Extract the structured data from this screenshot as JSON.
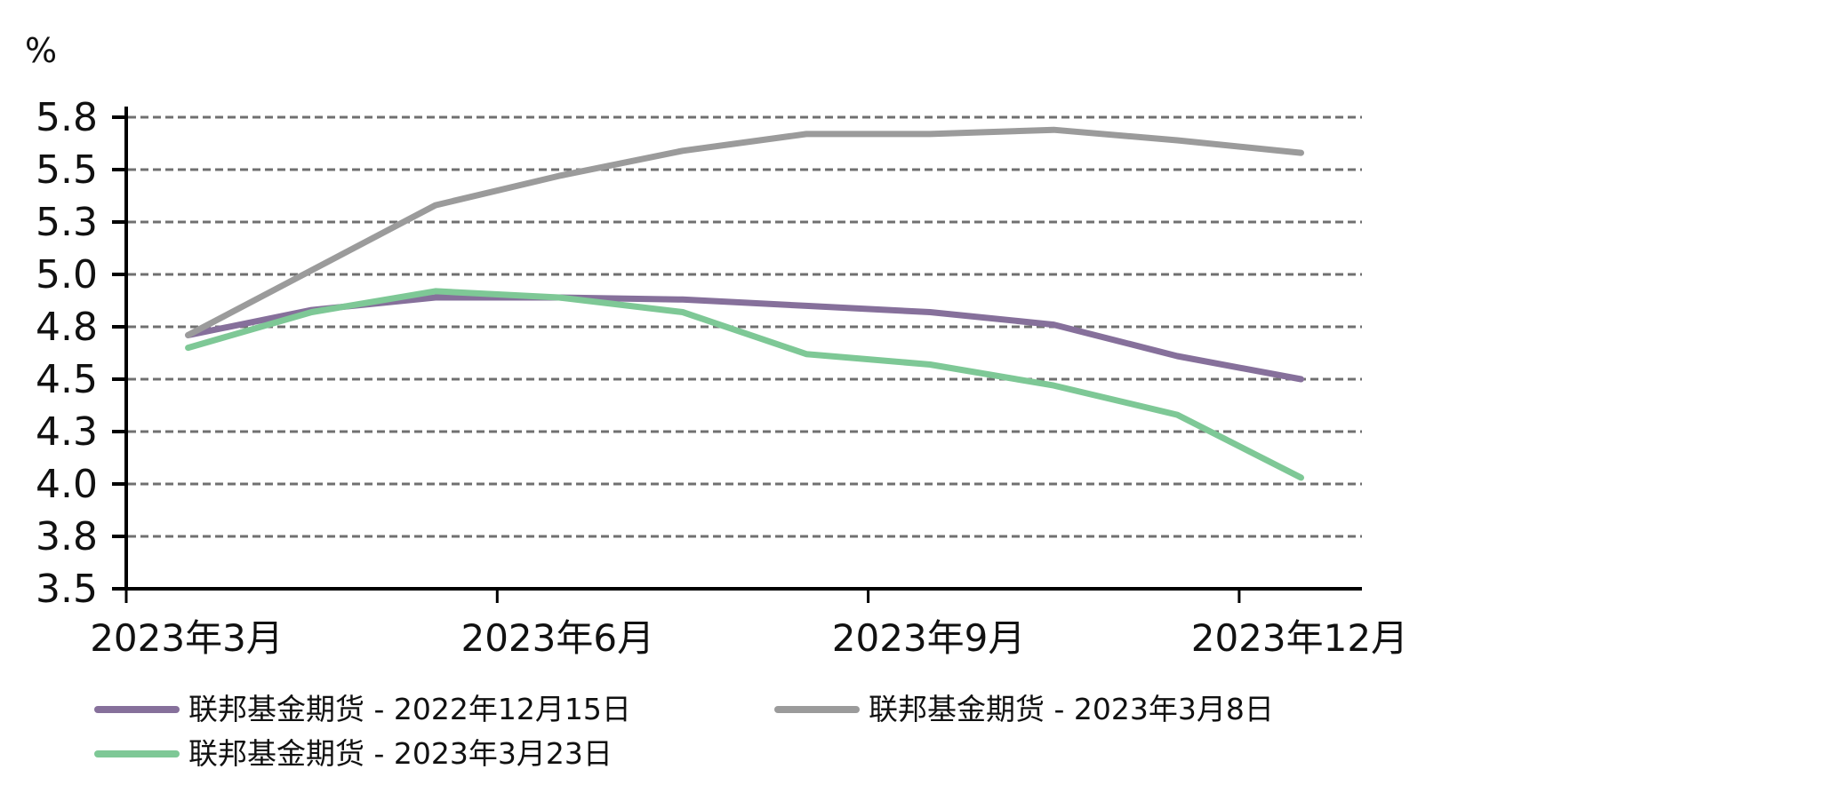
{
  "chart": {
    "unit_label": "%"
  },
  "legend": {
    "items": [
      {
        "label": "联邦基金期货 - 2022年12月15日",
        "color": "#86709b"
      },
      {
        "label": "联邦基金期货 - 2023年3月8日",
        "color": "#9b9b9b"
      },
      {
        "label": "联邦基金期货 - 2023年3月23日",
        "color": "#7ec896"
      }
    ]
  },
  "chart_data": {
    "type": "line",
    "title": "",
    "xlabel": "",
    "ylabel": "%",
    "x": [
      "2023-03",
      "2023-04",
      "2023-05",
      "2023-06",
      "2023-07",
      "2023-08",
      "2023-09",
      "2023-10",
      "2023-11",
      "2023-12"
    ],
    "x_tick_labels": [
      "2023年3月",
      "2023年6月",
      "2023年9月",
      "2023年12月"
    ],
    "y_tick_labels": [
      "3.5",
      "3.8",
      "4.0",
      "4.3",
      "4.5",
      "4.8",
      "5.0",
      "5.3",
      "5.5",
      "5.8"
    ],
    "y_tick_values": [
      3.5,
      3.75,
      4.0,
      4.25,
      4.5,
      4.75,
      5.0,
      5.25,
      5.5,
      5.75
    ],
    "ylim": [
      3.5,
      5.75
    ],
    "grid": {
      "y": true,
      "style": "dashed"
    },
    "legend_position": "bottom",
    "series": [
      {
        "name": "联邦基金期货 - 2022年12月15日",
        "color": "#86709b",
        "values": [
          4.71,
          4.83,
          4.89,
          4.89,
          4.88,
          4.85,
          4.82,
          4.76,
          4.61,
          4.5
        ]
      },
      {
        "name": "联邦基金期货 - 2023年3月8日",
        "color": "#9b9b9b",
        "values": [
          4.71,
          5.02,
          5.33,
          5.47,
          5.59,
          5.67,
          5.67,
          5.69,
          5.64,
          5.58
        ]
      },
      {
        "name": "联邦基金期货 - 2023年3月23日",
        "color": "#7ec896",
        "values": [
          4.65,
          4.82,
          4.92,
          4.89,
          4.82,
          4.62,
          4.57,
          4.47,
          4.33,
          4.03
        ]
      }
    ]
  }
}
